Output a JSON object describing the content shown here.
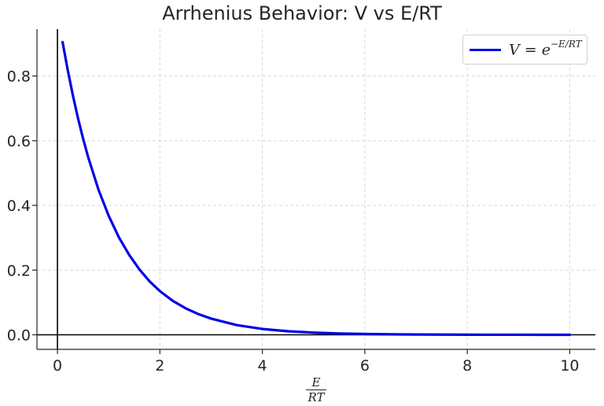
{
  "chart_data": {
    "type": "line",
    "title": "Arrhenius Behavior: V vs E/RT",
    "xlabel": {
      "numerator": "E",
      "denominator": "RT"
    },
    "ylabel": "",
    "xlim": [
      -0.4,
      10.5
    ],
    "ylim": [
      -0.045,
      0.945
    ],
    "xticks": [
      0,
      2,
      4,
      6,
      8,
      10
    ],
    "xtick_labels": [
      "0",
      "2",
      "4",
      "6",
      "8",
      "10"
    ],
    "yticks": [
      0.0,
      0.2,
      0.4,
      0.6,
      0.8
    ],
    "ytick_labels": [
      "0.0",
      "0.2",
      "0.4",
      "0.6",
      "0.8"
    ],
    "grid": true,
    "legend_placement": "top-right",
    "reference_lines": {
      "x": 0,
      "y": 0
    },
    "series": [
      {
        "name": "V = e^{-E/RT}",
        "legend_text": {
          "base": "V = e",
          "exponent": "−E/RT"
        },
        "color": "#0000e6",
        "function": "exp(-x)",
        "x": [
          0.1,
          0.2,
          0.3,
          0.4,
          0.5,
          0.6,
          0.8,
          1.0,
          1.2,
          1.4,
          1.6,
          1.8,
          2.0,
          2.25,
          2.5,
          2.75,
          3.0,
          3.5,
          4.0,
          4.5,
          5.0,
          5.5,
          6.0,
          6.5,
          7.0,
          7.5,
          8.0,
          8.5,
          9.0,
          9.5,
          10.0
        ],
        "y": [
          0.905,
          0.819,
          0.741,
          0.67,
          0.607,
          0.549,
          0.449,
          0.368,
          0.301,
          0.247,
          0.202,
          0.165,
          0.135,
          0.105,
          0.082,
          0.064,
          0.05,
          0.03,
          0.018,
          0.011,
          0.0067,
          0.0041,
          0.0025,
          0.0015,
          0.0009,
          0.00055,
          0.00034,
          0.0002,
          0.00012,
          7e-05,
          4.5e-05
        ]
      }
    ]
  }
}
